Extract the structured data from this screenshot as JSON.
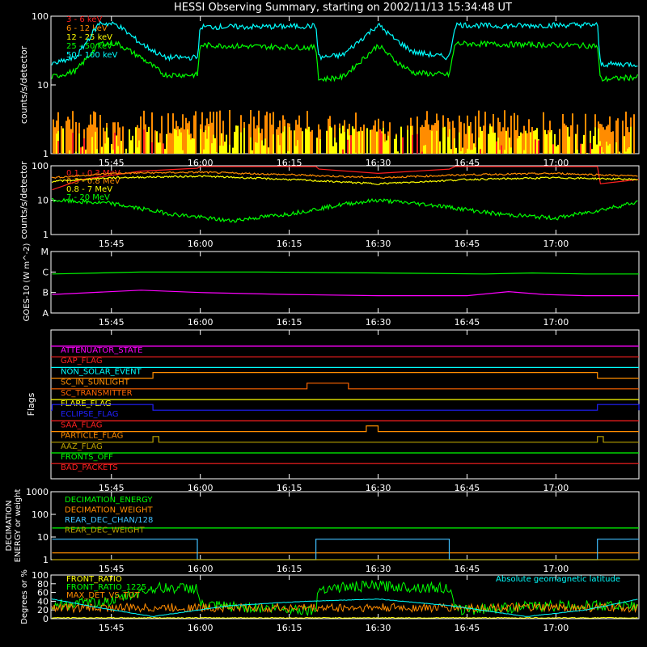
{
  "title": "HESSI Observing Summary, starting on 2002/11/13 15:34:48 UT",
  "time_ticks": [
    "15:45",
    "16:00",
    "16:15",
    "16:30",
    "16:45",
    "17:00"
  ],
  "colors": {
    "axis": "#ffffff",
    "red": "#ff2020",
    "orange": "#ff8c00",
    "yellow": "#ffff00",
    "green": "#00ff00",
    "cyan": "#00ffff",
    "magenta": "#ff00ff",
    "blue": "#2020ff",
    "olive": "#b8a000",
    "darkorange": "#ff6600",
    "lightblue": "#40c0ff"
  },
  "chart_data": [
    {
      "type": "line",
      "panel": "lightcurve-low",
      "ylabel": "counts/s/detector",
      "yscale": "log",
      "ylim": [
        1,
        100
      ],
      "yticks": [
        "100",
        "10",
        "1"
      ],
      "xlim": [
        "15:34:48",
        "17:14"
      ],
      "series": [
        {
          "name": "3 - 6 keV",
          "color": "red"
        },
        {
          "name": "6 - 12 keV",
          "color": "orange"
        },
        {
          "name": "12 - 25 keV",
          "color": "yellow"
        },
        {
          "name": "25 - 50 keV",
          "color": "green",
          "x": [
            "15:35",
            "15:39",
            "15:43",
            "15:46",
            "15:50",
            "15:54",
            "15:59:30",
            "16:00",
            "16:10",
            "16:19:30",
            "16:20",
            "16:24",
            "16:27",
            "16:30",
            "16:33",
            "16:36",
            "16:42",
            "16:43",
            "16:50",
            "17:00",
            "17:07",
            "17:07:30",
            "17:14"
          ],
          "y": [
            13,
            16,
            40,
            40,
            25,
            14,
            14,
            38,
            36,
            35,
            12,
            13,
            22,
            38,
            22,
            15,
            14,
            40,
            39,
            38,
            37,
            12,
            13
          ]
        },
        {
          "name": "50 - 100 keV",
          "color": "cyan",
          "x": [
            "15:35",
            "15:39",
            "15:43",
            "15:46",
            "15:50",
            "15:54",
            "15:59:30",
            "16:00",
            "16:10",
            "16:19:30",
            "16:20",
            "16:24",
            "16:27",
            "16:30",
            "16:33",
            "16:36",
            "16:42",
            "16:43",
            "16:50",
            "17:00",
            "17:07",
            "17:07:30",
            "17:14"
          ],
          "y": [
            20,
            25,
            80,
            75,
            40,
            25,
            25,
            70,
            70,
            72,
            25,
            27,
            45,
            75,
            45,
            30,
            25,
            75,
            72,
            74,
            75,
            20,
            20
          ]
        }
      ]
    },
    {
      "type": "line",
      "panel": "lightcurve-high",
      "ylabel": "counts/s/detector",
      "yscale": "log",
      "ylim": [
        1,
        100
      ],
      "yticks": [
        "100",
        "10",
        "1"
      ],
      "series": [
        {
          "name": "0.1 - 0.3 MeV",
          "color": "red",
          "x": [
            "15:35",
            "15:40",
            "15:50",
            "15:59:30",
            "16:00",
            "16:19:30",
            "16:20",
            "16:30",
            "16:42",
            "16:43",
            "17:07",
            "17:07:30",
            "17:14"
          ],
          "y": [
            20,
            40,
            70,
            85,
            95,
            95,
            80,
            60,
            80,
            95,
            95,
            30,
            40
          ]
        },
        {
          "name": "0.3 - 0.8 MeV",
          "color": "orange",
          "x": [
            "15:35",
            "15:45",
            "16:00",
            "16:15",
            "16:30",
            "16:45",
            "17:00",
            "17:14"
          ],
          "y": [
            45,
            60,
            65,
            55,
            45,
            55,
            60,
            50
          ]
        },
        {
          "name": "0.8 - 7 MeV",
          "color": "yellow",
          "x": [
            "15:35",
            "15:45",
            "16:00",
            "16:15",
            "16:30",
            "16:45",
            "17:00",
            "17:14"
          ],
          "y": [
            35,
            45,
            50,
            40,
            30,
            40,
            45,
            40
          ]
        },
        {
          "name": "7 - 20 MeV",
          "color": "green",
          "x": [
            "15:35",
            "15:45",
            "15:55",
            "16:05",
            "16:15",
            "16:25",
            "16:30",
            "16:40",
            "16:50",
            "17:00",
            "17:07",
            "17:14"
          ],
          "y": [
            10,
            8,
            4,
            2.5,
            4,
            8,
            10,
            7,
            4,
            3,
            5,
            9
          ]
        }
      ]
    },
    {
      "type": "line",
      "panel": "goes",
      "ylabel": "GOES-10 (W m^-2)",
      "yticks": [
        "M",
        "C",
        "B",
        "A"
      ],
      "series": [
        {
          "color": "green",
          "x": [
            "15:35",
            "15:50",
            "16:10",
            "16:30",
            "16:48",
            "16:56",
            "17:05",
            "17:14"
          ],
          "y": [
            "C0.8",
            "C1.0",
            "C1.0",
            "C0.9",
            "C0.8",
            "C0.9",
            "C0.8",
            "C0.8"
          ]
        },
        {
          "color": "magenta",
          "x": [
            "15:35",
            "15:50",
            "16:00",
            "16:15",
            "16:30",
            "16:45",
            "16:52",
            "16:58",
            "17:05",
            "17:14"
          ],
          "y": [
            "A8",
            "B1.3",
            "B1",
            "A8",
            "A7",
            "A7",
            "B1.1",
            "A8",
            "A7",
            "A7"
          ]
        }
      ]
    },
    {
      "type": "line",
      "panel": "flags",
      "ylabel": "Flags",
      "flags": [
        {
          "name": "ATTENUATOR_STATE",
          "color": "magenta"
        },
        {
          "name": "GAP_FLAG",
          "color": "red"
        },
        {
          "name": "NON_SOLAR_EVENT",
          "color": "cyan"
        },
        {
          "name": "SC_IN_SUNLIGHT",
          "color": "orange",
          "on": [
            [
              "15:52",
              "17:07"
            ]
          ]
        },
        {
          "name": "SC_TRANSMITTER",
          "color": "darkorange",
          "on": [
            [
              "16:18",
              "16:25"
            ]
          ]
        },
        {
          "name": "FLARE_FLAG",
          "color": "yellow"
        },
        {
          "name": "ECLIPSE_FLAG",
          "color": "blue",
          "on": [
            [
              "15:35",
              "15:52"
            ],
            [
              "17:07",
              "17:14"
            ]
          ]
        },
        {
          "name": "SAA_FLAG",
          "color": "red"
        },
        {
          "name": "PARTICLE_FLAG",
          "color": "orange",
          "on": [
            [
              "16:28",
              "16:30"
            ]
          ]
        },
        {
          "name": "AAZ_FLAG",
          "color": "olive",
          "on": [
            [
              "15:52",
              "15:53"
            ],
            [
              "17:07",
              "17:08"
            ]
          ]
        },
        {
          "name": "FRONTS_OFF",
          "color": "green"
        },
        {
          "name": "BAD_PACKETS",
          "color": "red"
        }
      ]
    },
    {
      "type": "line",
      "panel": "decimation",
      "ylabel": "DECIMATION ENERGY or weight",
      "yscale": "log",
      "ylim": [
        1,
        1000
      ],
      "yticks": [
        "1000",
        "100",
        "10",
        "1"
      ],
      "series": [
        {
          "name": "DECIMATION_ENERGY",
          "color": "green",
          "x": [
            "15:35",
            "17:14"
          ],
          "y": [
            25,
            25
          ]
        },
        {
          "name": "DECIMATION_WEIGHT",
          "color": "orange",
          "x": [
            "15:35",
            "17:14"
          ],
          "y": [
            2,
            2
          ]
        },
        {
          "name": "REAR_DEC_CHAN/128",
          "color": "lightblue",
          "x": [
            "15:35",
            "15:59:30",
            "15:59:30",
            "16:19:30",
            "16:19:30",
            "16:42",
            "16:42",
            "17:07",
            "17:07",
            "17:14"
          ],
          "y": [
            8,
            8,
            1,
            1,
            8,
            8,
            1,
            1,
            8,
            8
          ]
        },
        {
          "name": "REAR_DEC_WEIGHT",
          "color": "olive",
          "x": [
            "15:35",
            "17:14"
          ],
          "y": [
            1,
            1
          ]
        }
      ]
    },
    {
      "type": "line",
      "panel": "ratio",
      "ylabel": "Degrees or %",
      "ylim": [
        0,
        100
      ],
      "yticks": [
        "100",
        "80",
        "60",
        "40",
        "20",
        "0"
      ],
      "annotation": "Absolute geomagnetic latitude",
      "series": [
        {
          "name": "FRONT_RATIO",
          "color": "yellow",
          "x": [
            "15:35",
            "15:59:30",
            "16:20",
            "16:42",
            "17:07",
            "17:14"
          ],
          "y": [
            2,
            2,
            2,
            2,
            2,
            2
          ]
        },
        {
          "name": "FRONT_RATIO_1225",
          "color": "green",
          "x": [
            "15:35",
            "15:45",
            "15:52",
            "15:59:30",
            "16:00",
            "16:19:30",
            "16:20",
            "16:30",
            "16:42",
            "16:43",
            "17:00",
            "17:07",
            "17:14"
          ],
          "y": [
            30,
            40,
            70,
            70,
            30,
            20,
            70,
            75,
            70,
            20,
            30,
            30,
            30
          ]
        },
        {
          "name": "MAX_DET_VS_TOT",
          "color": "orange",
          "x": [
            "15:35",
            "15:45",
            "16:00",
            "16:15",
            "16:30",
            "16:45",
            "17:00",
            "17:14"
          ],
          "y": [
            25,
            25,
            25,
            25,
            25,
            25,
            25,
            25
          ]
        },
        {
          "name": "Absolute geomagnetic latitude",
          "color": "cyan",
          "x": [
            "15:35",
            "15:43",
            "15:52",
            "16:05",
            "16:18",
            "16:30",
            "16:42",
            "16:55",
            "17:05",
            "17:14"
          ],
          "y": [
            45,
            25,
            5,
            30,
            40,
            45,
            30,
            5,
            20,
            45
          ]
        }
      ]
    }
  ]
}
